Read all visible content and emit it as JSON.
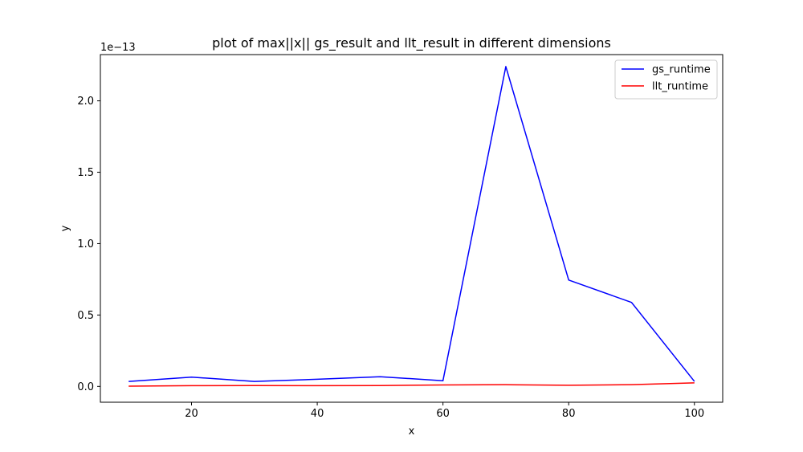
{
  "chart_data": {
    "type": "line",
    "title": "plot of max||x|| gs_result and llt_result in different dimensions",
    "xlabel": "x",
    "ylabel": "y",
    "y_offset_label": "1e−13",
    "y_multiplier": 1e-13,
    "xlim": [
      5.5,
      104.5
    ],
    "ylim": [
      -0.1107,
      2.3239
    ],
    "x_ticks": [
      20,
      40,
      60,
      80,
      100
    ],
    "x_tick_labels": [
      "20",
      "40",
      "60",
      "80",
      "100"
    ],
    "y_ticks": [
      0.0,
      0.5,
      1.0,
      1.5,
      2.0
    ],
    "y_tick_labels": [
      "0.0",
      "0.5",
      "1.0",
      "1.5",
      "2.0"
    ],
    "grid": false,
    "legend_position": "top-right",
    "x": [
      10,
      20,
      30,
      40,
      50,
      60,
      70,
      80,
      90,
      100
    ],
    "series": [
      {
        "name": "gs_runtime",
        "color": "#0000ff",
        "values": [
          0.035,
          0.065,
          0.035,
          0.05,
          0.068,
          0.04,
          2.24,
          0.745,
          0.588,
          0.035
        ]
      },
      {
        "name": "llt_runtime",
        "color": "#ff0000",
        "values": [
          0.002,
          0.005,
          0.006,
          0.005,
          0.006,
          0.01,
          0.012,
          0.008,
          0.012,
          0.025
        ]
      }
    ]
  }
}
